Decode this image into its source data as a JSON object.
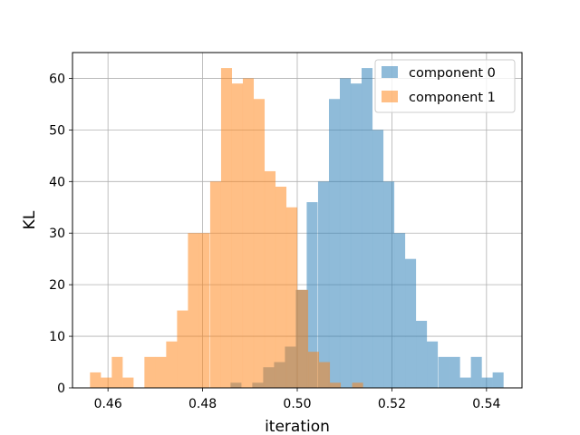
{
  "chart_data": {
    "type": "histogram",
    "xlabel": "iteration",
    "ylabel": "KL",
    "xlim": [
      0.4525,
      0.5475
    ],
    "ylim": [
      0,
      65
    ],
    "xticks": [
      0.46,
      0.48,
      0.5,
      0.52,
      0.54
    ],
    "xtick_labels": [
      "0.46",
      "0.48",
      "0.50",
      "0.52",
      "0.54"
    ],
    "yticks": [
      0,
      10,
      20,
      30,
      40,
      50,
      60
    ],
    "ytick_labels": [
      "0",
      "10",
      "20",
      "30",
      "40",
      "50",
      "60"
    ],
    "grid": true,
    "legend_position": "top-right",
    "series": [
      {
        "name": "component 0",
        "color": "#1f77b4",
        "alpha": 0.5,
        "bin_width": 0.00231,
        "bins": [
          [
            0.4859,
            1
          ],
          [
            0.4905,
            1
          ],
          [
            0.4928,
            4
          ],
          [
            0.4951,
            5
          ],
          [
            0.4974,
            8
          ],
          [
            0.4997,
            19
          ],
          [
            0.502,
            36
          ],
          [
            0.5044,
            40
          ],
          [
            0.5067,
            56
          ],
          [
            0.509,
            60
          ],
          [
            0.5113,
            59
          ],
          [
            0.5136,
            62
          ],
          [
            0.5159,
            50
          ],
          [
            0.5182,
            40
          ],
          [
            0.5205,
            30
          ],
          [
            0.5228,
            25
          ],
          [
            0.5251,
            13
          ],
          [
            0.5274,
            9
          ],
          [
            0.5298,
            6
          ],
          [
            0.5321,
            6
          ],
          [
            0.5344,
            2
          ],
          [
            0.5367,
            6
          ],
          [
            0.539,
            2
          ],
          [
            0.5413,
            3
          ]
        ]
      },
      {
        "name": "component 1",
        "color": "#ff7f0e",
        "alpha": 0.5,
        "bin_width": 0.00231,
        "bins": [
          [
            0.4562,
            3
          ],
          [
            0.4585,
            2
          ],
          [
            0.4608,
            6
          ],
          [
            0.4631,
            2
          ],
          [
            0.4677,
            6
          ],
          [
            0.47,
            6
          ],
          [
            0.4723,
            9
          ],
          [
            0.4746,
            15
          ],
          [
            0.4769,
            30
          ],
          [
            0.4792,
            30
          ],
          [
            0.4816,
            40
          ],
          [
            0.4839,
            62
          ],
          [
            0.4862,
            59
          ],
          [
            0.4885,
            60
          ],
          [
            0.4908,
            56
          ],
          [
            0.4931,
            42
          ],
          [
            0.4954,
            39
          ],
          [
            0.4977,
            35
          ],
          [
            0.5,
            19
          ],
          [
            0.5023,
            7
          ],
          [
            0.5046,
            5
          ],
          [
            0.5069,
            1
          ],
          [
            0.5116,
            1
          ]
        ]
      }
    ]
  }
}
